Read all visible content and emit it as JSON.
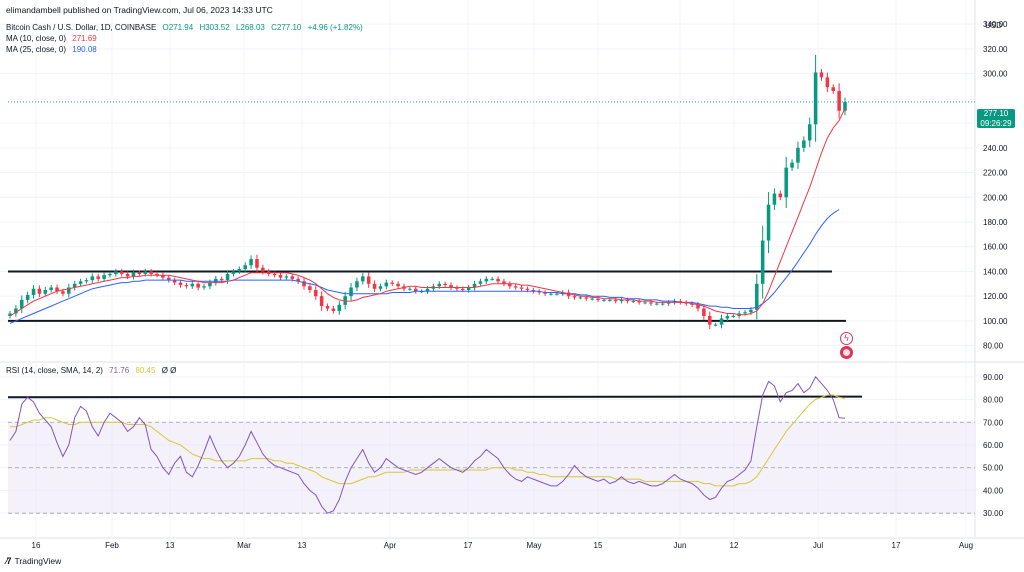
{
  "publisher_line": "elimandambell published on TradingView.com, Jul 06, 2023 14:33 UTC",
  "legend": {
    "symbol": "Bitcoin Cash / U.S. Dollar, 1D, COINBASE",
    "o": "O271.94",
    "h": "H303.52",
    "l": "L268.03",
    "c": "C277.10",
    "chg": "+4.96 (+1.82%)",
    "ma10_label": "MA (10, close, 0)",
    "ma10_value": "271.69",
    "ma25_label": "MA (25, close, 0)",
    "ma25_value": "190.08",
    "rsi_label": "RSI (14, close, SMA, 14, 2)",
    "rsi_value": "71.76",
    "rsi_sma_value": "80.45",
    "rsi_extra": "Ø Ø"
  },
  "price_axis_title": "USD",
  "last_price": "277.10",
  "countdown": "09:26:29",
  "brand": "TradingView",
  "colors": {
    "up": "#089981",
    "down": "#f23645",
    "ma10": "#f23645",
    "ma25": "#2962ff",
    "rsi": "#7e57c2",
    "rsi_sma": "#d6c83a",
    "rsi_band": "#ede7f6",
    "trendlines": "#131722"
  },
  "event_icons": [
    "lightning-icon",
    "us-flag-icon"
  ],
  "chart_data": [
    {
      "type": "candlestick",
      "x_axis_labels": [
        "16",
        "Feb",
        "13",
        "Mar",
        "13",
        "Apr",
        "17",
        "May",
        "15",
        "Jun",
        "12",
        "Jul",
        "17",
        "Aug"
      ],
      "y_ticks": [
        80,
        100,
        120,
        140,
        160,
        180,
        200,
        220,
        240,
        260,
        300,
        320,
        340
      ],
      "ylim": [
        70,
        345
      ],
      "horizontal_lines": [
        140,
        100
      ],
      "close": [
        106,
        110,
        117,
        121,
        126,
        122,
        125,
        127,
        124,
        122,
        127,
        130,
        132,
        133,
        136,
        134,
        137,
        138,
        140,
        138,
        136,
        139,
        138,
        140,
        138,
        137,
        135,
        133,
        131,
        129,
        128,
        130,
        127,
        128,
        131,
        134,
        133,
        138,
        140,
        142,
        145,
        150,
        143,
        140,
        138,
        137,
        135,
        136,
        134,
        132,
        128,
        125,
        120,
        112,
        110,
        108,
        113,
        120,
        127,
        132,
        136,
        130,
        126,
        128,
        131,
        130,
        128,
        126,
        126,
        124,
        124,
        126,
        128,
        130,
        129,
        127,
        126,
        125,
        127,
        130,
        132,
        134,
        134,
        132,
        130,
        128,
        127,
        126,
        125,
        124,
        123,
        122,
        122,
        122,
        123,
        120,
        119,
        119,
        118,
        118,
        117,
        117,
        117,
        116,
        117,
        116,
        116,
        115,
        115,
        114,
        114,
        114,
        115,
        116,
        115,
        114,
        113,
        110,
        104,
        97,
        97,
        102,
        104,
        104,
        106,
        107,
        109,
        130,
        165,
        194,
        203,
        200,
        224,
        228,
        240,
        246,
        259,
        301,
        297,
        289,
        286,
        270,
        277
      ],
      "ma10": [
        104,
        107,
        110,
        113,
        116,
        118,
        120,
        122,
        124,
        125,
        126,
        127,
        128,
        129,
        130,
        131,
        132,
        133,
        134,
        135,
        135,
        136,
        136,
        137,
        137,
        137,
        137,
        137,
        136,
        135,
        134,
        133,
        132,
        131,
        131,
        131,
        131,
        132,
        133,
        135,
        137,
        139,
        139,
        139,
        139,
        139,
        139,
        139,
        138,
        137,
        135,
        133,
        130,
        126,
        122,
        119,
        117,
        116,
        116,
        117,
        119,
        120,
        121,
        122,
        124,
        125,
        126,
        127,
        128,
        128,
        127,
        127,
        127,
        127,
        127,
        127,
        127,
        127,
        127,
        127,
        128,
        129,
        130,
        130,
        130,
        130,
        130,
        129,
        129,
        128,
        127,
        126,
        125,
        124,
        123,
        122,
        121,
        120,
        120,
        119,
        119,
        118,
        118,
        118,
        117,
        117,
        117,
        116,
        116,
        116,
        115,
        115,
        115,
        115,
        115,
        115,
        114,
        113,
        112,
        110,
        108,
        107,
        106,
        106,
        105,
        105,
        106,
        108,
        114,
        124,
        136,
        148,
        160,
        172,
        184,
        196,
        208,
        222,
        236,
        248,
        256,
        262,
        271.69
      ],
      "ma25": [
        98,
        100,
        102,
        104,
        106,
        108,
        110,
        112,
        114,
        116,
        118,
        120,
        122,
        124,
        126,
        127,
        128,
        129,
        130,
        131,
        131,
        132,
        132,
        133,
        133,
        133,
        133,
        133,
        133,
        133,
        132,
        132,
        132,
        132,
        132,
        132,
        132,
        132,
        133,
        133,
        133,
        133,
        133,
        133,
        133,
        133,
        133,
        133,
        133,
        132,
        131,
        130,
        129,
        127,
        125,
        124,
        123,
        122,
        122,
        122,
        122,
        122,
        122,
        122,
        122,
        123,
        123,
        123,
        123,
        124,
        124,
        124,
        124,
        124,
        124,
        124,
        124,
        124,
        124,
        124,
        124,
        124,
        124,
        124,
        124,
        124,
        124,
        124,
        124,
        124,
        124,
        123,
        123,
        123,
        122,
        122,
        122,
        121,
        121,
        120,
        120,
        120,
        119,
        119,
        119,
        118,
        118,
        118,
        117,
        117,
        117,
        116,
        116,
        116,
        115,
        115,
        115,
        114,
        113,
        112,
        112,
        111,
        111,
        110,
        110,
        110,
        110,
        111,
        114,
        118,
        123,
        129,
        135,
        141,
        148,
        155,
        162,
        170,
        177,
        183,
        187,
        190.08
      ]
    },
    {
      "type": "line",
      "title": "RSI",
      "y_ticks": [
        30,
        40,
        50,
        60,
        70,
        80,
        90
      ],
      "ylim": [
        27,
        93
      ],
      "band": [
        30,
        70
      ],
      "mid": 50,
      "horizontal_lines": [
        81
      ],
      "rsi": [
        62,
        66,
        78,
        81,
        79,
        74,
        71,
        68,
        61,
        55,
        60,
        72,
        77,
        75,
        68,
        64,
        70,
        74,
        72,
        70,
        66,
        68,
        72,
        69,
        58,
        55,
        50,
        47,
        52,
        55,
        48,
        46,
        51,
        57,
        64,
        58,
        53,
        50,
        52,
        55,
        60,
        66,
        61,
        56,
        53,
        51,
        50,
        49,
        48,
        47,
        43,
        40,
        38,
        33,
        30,
        31,
        36,
        44,
        50,
        54,
        58,
        52,
        48,
        50,
        54,
        52,
        50,
        49,
        48,
        47,
        48,
        50,
        52,
        54,
        52,
        50,
        49,
        48,
        50,
        53,
        55,
        58,
        56,
        54,
        50,
        47,
        45,
        44,
        46,
        45,
        44,
        43,
        42,
        42,
        44,
        47,
        51,
        48,
        46,
        45,
        44,
        45,
        43,
        44,
        46,
        44,
        43,
        44,
        43,
        42,
        42,
        43,
        45,
        47,
        45,
        44,
        43,
        41,
        38,
        36,
        37,
        41,
        44,
        45,
        47,
        49,
        53,
        68,
        82,
        88,
        86,
        79,
        83,
        84,
        87,
        83,
        85,
        90,
        87,
        84,
        80,
        72,
        71.76
      ],
      "rsi_sma": [
        68,
        68,
        69,
        70,
        71,
        71,
        72,
        72,
        71,
        70,
        69,
        69,
        70,
        70,
        70,
        70,
        70,
        70,
        70,
        70,
        69,
        69,
        69,
        69,
        68,
        66,
        64,
        62,
        61,
        60,
        58,
        56,
        55,
        54,
        54,
        53,
        53,
        53,
        53,
        53,
        53,
        54,
        54,
        54,
        54,
        53,
        53,
        52,
        52,
        51,
        50,
        49,
        48,
        46,
        45,
        44,
        43,
        43,
        43,
        44,
        45,
        46,
        46,
        47,
        48,
        48,
        48,
        48,
        49,
        49,
        49,
        49,
        49,
        49,
        49,
        49,
        49,
        49,
        49,
        49,
        49,
        49,
        50,
        50,
        50,
        50,
        49,
        49,
        48,
        48,
        47,
        47,
        46,
        46,
        46,
        46,
        46,
        46,
        46,
        46,
        46,
        46,
        46,
        45,
        45,
        45,
        45,
        45,
        44,
        44,
        44,
        44,
        44,
        44,
        44,
        44,
        44,
        44,
        43,
        43,
        42,
        42,
        42,
        42,
        43,
        43,
        44,
        46,
        50,
        54,
        58,
        62,
        66,
        69,
        72,
        75,
        78,
        80,
        81,
        82,
        82,
        81,
        80.45
      ]
    }
  ]
}
